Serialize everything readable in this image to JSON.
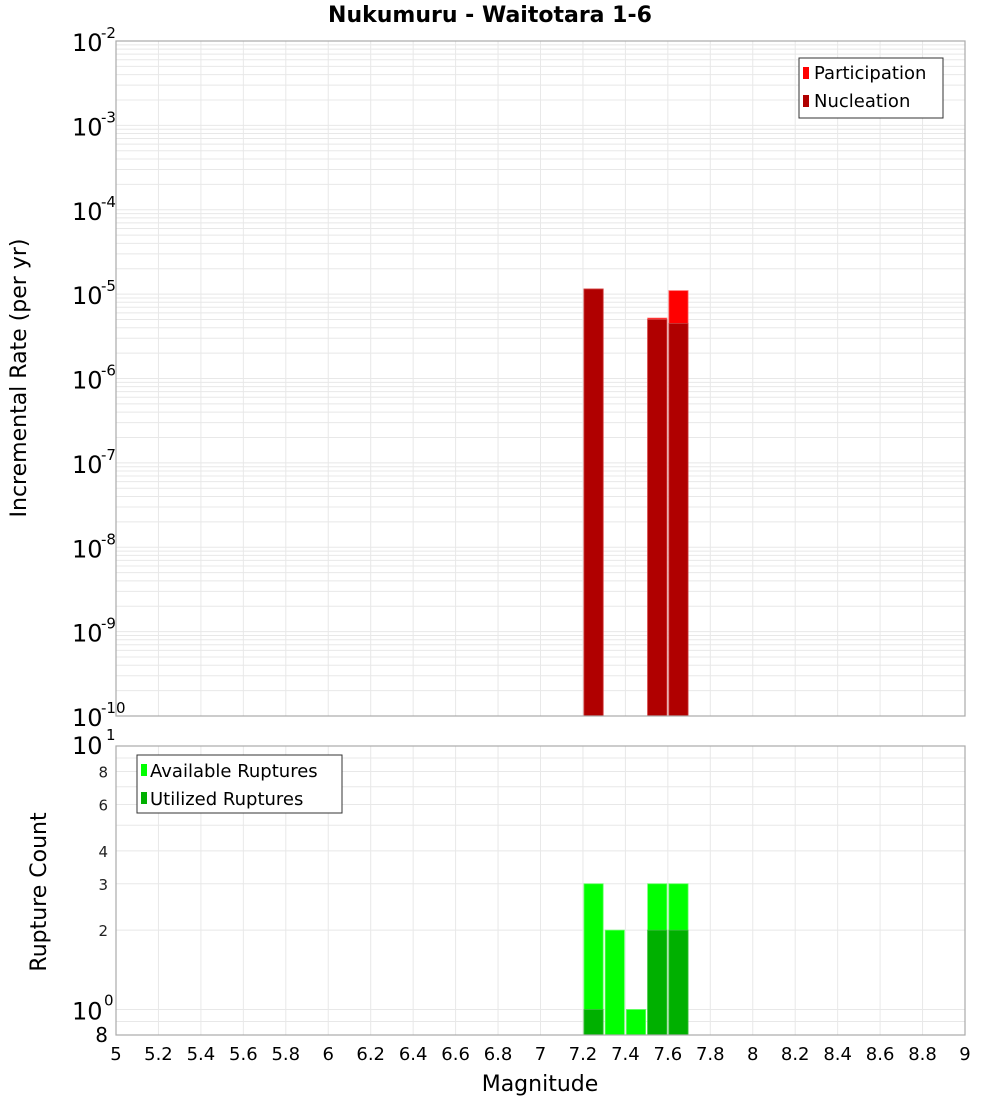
{
  "title": "Nukumuru - Waitotara 1-6",
  "colors": {
    "participation": "#ff0000",
    "nucleation": "#b00000",
    "available": "#00ff00",
    "utilized": "#00b000",
    "grid": "#e8e8e8",
    "frame": "#aaaaaa"
  },
  "top_plot": {
    "ylabel": "Incremental Rate (per yr)",
    "y_ticks": [
      {
        "base": "10",
        "exp": "-2"
      },
      {
        "base": "10",
        "exp": "-3"
      },
      {
        "base": "10",
        "exp": "-4"
      },
      {
        "base": "10",
        "exp": "-5"
      },
      {
        "base": "10",
        "exp": "-6"
      },
      {
        "base": "10",
        "exp": "-7"
      },
      {
        "base": "10",
        "exp": "-8"
      },
      {
        "base": "10",
        "exp": "-9"
      },
      {
        "base": "10",
        "exp": "-10"
      }
    ],
    "legend": [
      "Participation",
      "Nucleation"
    ]
  },
  "bottom_plot": {
    "ylabel": "Rupture Count",
    "y_ticks_major": [
      {
        "base": "10",
        "exp": "1"
      },
      {
        "base": "10",
        "exp": "0"
      }
    ],
    "y_ticks_minor": [
      "8",
      "6",
      "4",
      "3",
      "2",
      "8"
    ],
    "legend": [
      "Available Ruptures",
      "Utilized Ruptures"
    ]
  },
  "xlabel": "Magnitude",
  "x_ticks": [
    "5",
    "5.2",
    "5.4",
    "5.6",
    "5.8",
    "6",
    "6.2",
    "6.4",
    "6.6",
    "6.8",
    "7",
    "7.2",
    "7.4",
    "7.6",
    "7.8",
    "8",
    "8.2",
    "8.4",
    "8.6",
    "8.8",
    "9"
  ],
  "chart_data": [
    {
      "type": "bar",
      "title": "Nukumuru - Waitotara 1-6",
      "xlabel": "Magnitude",
      "ylabel": "Incremental Rate (per yr)",
      "yscale": "log",
      "xlim": [
        5,
        9
      ],
      "ylim": [
        1e-10,
        0.01
      ],
      "grid": true,
      "legend_position": "top-right",
      "categories": [
        7.25,
        7.55,
        7.65
      ],
      "bar_width": 0.1,
      "series": [
        {
          "name": "Participation",
          "color": "#ff0000",
          "values": [
            1.15e-05,
            5.2e-06,
            1.1e-05
          ]
        },
        {
          "name": "Nucleation",
          "color": "#b00000",
          "values": [
            1.15e-05,
            5e-06,
            4.5e-06
          ]
        }
      ]
    },
    {
      "type": "bar",
      "xlabel": "Magnitude",
      "ylabel": "Rupture Count",
      "yscale": "log",
      "xlim": [
        5,
        9
      ],
      "ylim": [
        0.8,
        10
      ],
      "grid": true,
      "legend_position": "top-left",
      "categories": [
        7.25,
        7.35,
        7.45,
        7.55,
        7.65
      ],
      "bar_width": 0.1,
      "series": [
        {
          "name": "Available Ruptures",
          "color": "#00ff00",
          "values": [
            3,
            2,
            1,
            3,
            3
          ]
        },
        {
          "name": "Utilized Ruptures",
          "color": "#00b000",
          "values": [
            1,
            0,
            0,
            2,
            2
          ]
        }
      ]
    }
  ]
}
